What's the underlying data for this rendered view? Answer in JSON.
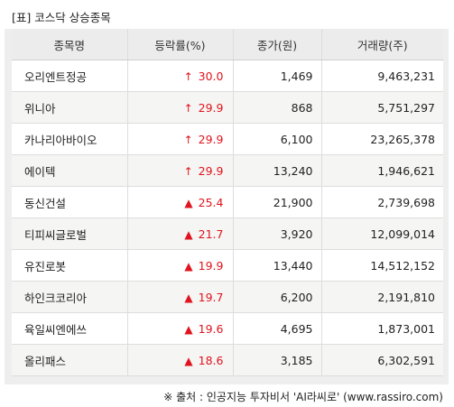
{
  "title": "[표] 코스닥 상승종목",
  "columns": [
    "종목명",
    "등락률(%)",
    "종가(원)",
    "거래량(주)"
  ],
  "rows": [
    {
      "name": "오리엔트정공",
      "icon": "↑",
      "rate": "30.0",
      "price": "1,469",
      "volume": "9,463,231"
    },
    {
      "name": "위니아",
      "icon": "↑",
      "rate": "29.9",
      "price": "868",
      "volume": "5,751,297"
    },
    {
      "name": "카나리아바이오",
      "icon": "↑",
      "rate": "29.9",
      "price": "6,100",
      "volume": "23,265,378"
    },
    {
      "name": "에이텍",
      "icon": "↑",
      "rate": "29.9",
      "price": "13,240",
      "volume": "1,946,621"
    },
    {
      "name": "동신건설",
      "icon": "▲",
      "rate": "25.4",
      "price": "21,900",
      "volume": "2,739,698"
    },
    {
      "name": "티피씨글로벌",
      "icon": "▲",
      "rate": "21.7",
      "price": "3,920",
      "volume": "12,099,014"
    },
    {
      "name": "유진로봇",
      "icon": "▲",
      "rate": "19.9",
      "price": "13,440",
      "volume": "14,512,152"
    },
    {
      "name": "하인크코리아",
      "icon": "▲",
      "rate": "19.7",
      "price": "6,200",
      "volume": "2,191,810"
    },
    {
      "name": "육일씨엔에쓰",
      "icon": "▲",
      "rate": "19.6",
      "price": "4,695",
      "volume": "1,873,001"
    },
    {
      "name": "올리패스",
      "icon": "▲",
      "rate": "18.6",
      "price": "3,185",
      "volume": "6,302,591"
    }
  ],
  "footer": "※ 출처 : 인공지능 투자비서 'AI라씨로' (www.rassiro.com)",
  "colors": {
    "up": "#e0141e",
    "header_bg": "#ececec",
    "frame_bg": "#eeeeee"
  }
}
